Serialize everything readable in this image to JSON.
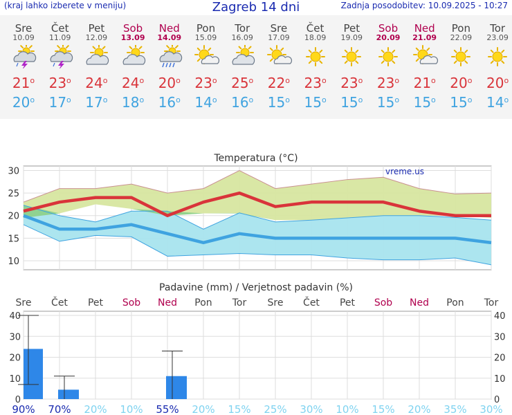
{
  "header": {
    "menu_hint": "(kraj lahko izberete v meniju)",
    "title": "Zagreb 14 dni",
    "updated": "Zadnja posodobitev: 10.09.2025 - 10:27"
  },
  "days": [
    {
      "name": "Sre",
      "date": "10.09",
      "weekend": false,
      "icon": "thunderstorm-icon",
      "max": "21",
      "min": "20"
    },
    {
      "name": "Čet",
      "date": "11.09",
      "weekend": false,
      "icon": "thunderstorm-icon",
      "max": "23",
      "min": "17"
    },
    {
      "name": "Pet",
      "date": "12.09",
      "weekend": false,
      "icon": "partly-cloudy-icon",
      "max": "24",
      "min": "17"
    },
    {
      "name": "Sob",
      "date": "13.09",
      "weekend": true,
      "icon": "partly-cloudy-icon",
      "max": "24",
      "min": "18"
    },
    {
      "name": "Ned",
      "date": "14.09",
      "weekend": true,
      "icon": "rain-shower-icon",
      "max": "20",
      "min": "16"
    },
    {
      "name": "Pon",
      "date": "15.09",
      "weekend": false,
      "icon": "sun-cloud-icon",
      "max": "23",
      "min": "14"
    },
    {
      "name": "Tor",
      "date": "16.09",
      "weekend": false,
      "icon": "partly-cloudy-icon",
      "max": "25",
      "min": "16"
    },
    {
      "name": "Sre",
      "date": "17.09",
      "weekend": false,
      "icon": "sun-cloud-icon",
      "max": "22",
      "min": "15"
    },
    {
      "name": "Čet",
      "date": "18.09",
      "weekend": false,
      "icon": "sun-icon",
      "max": "23",
      "min": "15"
    },
    {
      "name": "Pet",
      "date": "19.09",
      "weekend": false,
      "icon": "sun-icon",
      "max": "23",
      "min": "15"
    },
    {
      "name": "Sob",
      "date": "20.09",
      "weekend": true,
      "icon": "sun-icon",
      "max": "23",
      "min": "15"
    },
    {
      "name": "Ned",
      "date": "21.09",
      "weekend": true,
      "icon": "sun-cloud-icon",
      "max": "21",
      "min": "15"
    },
    {
      "name": "Pon",
      "date": "22.09",
      "weekend": false,
      "icon": "sun-icon",
      "max": "20",
      "min": "15"
    },
    {
      "name": "Tor",
      "date": "23.09",
      "weekend": false,
      "icon": "sun-icon",
      "max": "20",
      "min": "14"
    }
  ],
  "chart_data": [
    {
      "type": "line",
      "title": "Temperatura (°C)",
      "watermark": "vreme.us",
      "xlabel": "",
      "ylabel": "",
      "ylim": [
        8,
        31
      ],
      "yticks": [
        10,
        15,
        20,
        25,
        30
      ],
      "grid": true,
      "x": [
        "10.09",
        "11.09",
        "12.09",
        "13.09",
        "14.09",
        "15.09",
        "16.09",
        "17.09",
        "18.09",
        "19.09",
        "20.09",
        "21.09",
        "22.09",
        "23.09"
      ],
      "series": [
        {
          "name": "max",
          "color": "#d9343a",
          "values": [
            21,
            23,
            24,
            24,
            20,
            23,
            25,
            22,
            23,
            23,
            23,
            21,
            20,
            20
          ]
        },
        {
          "name": "min",
          "color": "#3fa3e0",
          "values": [
            20,
            17,
            17,
            18,
            16,
            14,
            16,
            15,
            15,
            15,
            15,
            15,
            15,
            14
          ]
        }
      ],
      "max_range": {
        "color": "#d7e6a0",
        "low": [
          19.5,
          20.5,
          22.5,
          21.5,
          20,
          20.5,
          20.5,
          19,
          19,
          19.5,
          20,
          20,
          20,
          19.5
        ],
        "high": [
          23,
          26,
          26,
          27,
          25,
          26,
          30,
          26,
          27,
          28,
          28.5,
          26,
          24.8,
          25
        ]
      },
      "min_range": {
        "color": "#a8e4ee",
        "low": [
          18,
          14.3,
          15.6,
          15.3,
          11,
          11.3,
          11.6,
          11.3,
          11.3,
          10.6,
          10.2,
          10.2,
          10.6,
          9.1
        ],
        "high": [
          22.3,
          20,
          18.6,
          21,
          21,
          17,
          20.6,
          18.6,
          19,
          19.5,
          20,
          20,
          19.6,
          19
        ],
        "overlap_color": "#8ed18c"
      }
    },
    {
      "type": "bar",
      "title": "Padavine (mm) / Verjetnost padavin (%)",
      "xlabel": "",
      "ylabel": "",
      "ylim": [
        0,
        42
      ],
      "yticks": [
        0,
        10,
        20,
        30,
        40
      ],
      "grid": true,
      "categories": [
        "Sre",
        "Čet",
        "Pet",
        "Sob",
        "Ned",
        "Pon",
        "Tor",
        "Sre",
        "Čet",
        "Pet",
        "Sob",
        "Ned",
        "Pon",
        "Tor"
      ],
      "weekend": [
        false,
        false,
        false,
        true,
        true,
        false,
        false,
        false,
        false,
        false,
        true,
        true,
        false,
        false
      ],
      "values": [
        24,
        4.5,
        0,
        0,
        11,
        0,
        0,
        0,
        0,
        0,
        0,
        0,
        0,
        0
      ],
      "error_high": [
        40,
        11,
        0,
        0,
        23,
        0,
        0,
        0,
        0,
        0,
        0,
        0,
        0,
        0
      ],
      "error_low": [
        7,
        0,
        0,
        0,
        0,
        0,
        0,
        0,
        0,
        0,
        0,
        0,
        0,
        0
      ],
      "probability": [
        "90%",
        "70%",
        "20%",
        "10%",
        "55%",
        "20%",
        "15%",
        "25%",
        "30%",
        "10%",
        "15%",
        "20%",
        "35%",
        "30%"
      ],
      "bar_color": "#2e87e8"
    }
  ]
}
